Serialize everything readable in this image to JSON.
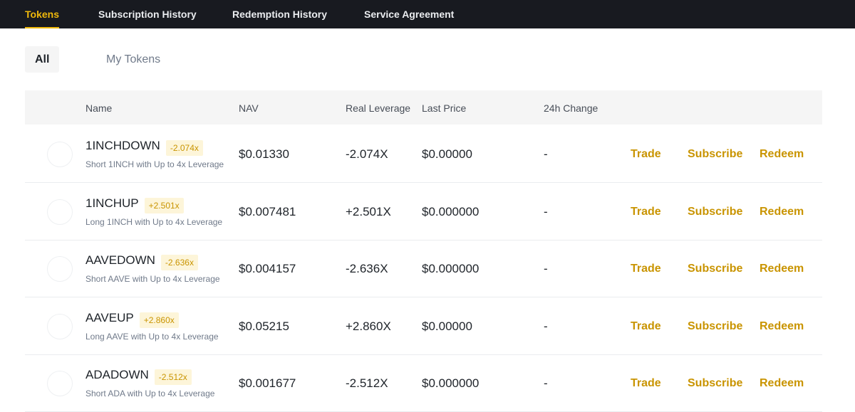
{
  "nav": {
    "tabs": [
      "Tokens",
      "Subscription History",
      "Redemption History",
      "Service Agreement"
    ],
    "active": 0
  },
  "filters": {
    "options": [
      "All",
      "My Tokens"
    ],
    "active": 0
  },
  "table": {
    "headers": [
      "Name",
      "NAV",
      "Real Leverage",
      "Last Price",
      "24h Change"
    ],
    "row_actions": [
      "Trade",
      "Subscribe",
      "Redeem"
    ],
    "rows": [
      {
        "name": "1INCHDOWN",
        "badge": "-2.074x",
        "description": "Short 1INCH with Up to 4x Leverage",
        "nav": "$0.01330",
        "real_leverage": "-2.074X",
        "last_price": "$0.00000",
        "change_24h": "-"
      },
      {
        "name": "1INCHUP",
        "badge": "+2.501x",
        "description": "Long 1INCH with Up to 4x Leverage",
        "nav": "$0.007481",
        "real_leverage": "+2.501X",
        "last_price": "$0.000000",
        "change_24h": "-"
      },
      {
        "name": "AAVEDOWN",
        "badge": "-2.636x",
        "description": "Short AAVE with Up to 4x Leverage",
        "nav": "$0.004157",
        "real_leverage": "-2.636X",
        "last_price": "$0.000000",
        "change_24h": "-"
      },
      {
        "name": "AAVEUP",
        "badge": "+2.860x",
        "description": "Long AAVE with Up to 4x Leverage",
        "nav": "$0.05215",
        "real_leverage": "+2.860X",
        "last_price": "$0.00000",
        "change_24h": "-"
      },
      {
        "name": "ADADOWN",
        "badge": "-2.512x",
        "description": "Short ADA with Up to 4x Leverage",
        "nav": "$0.001677",
        "real_leverage": "-2.512X",
        "last_price": "$0.000000",
        "change_24h": "-"
      }
    ]
  }
}
